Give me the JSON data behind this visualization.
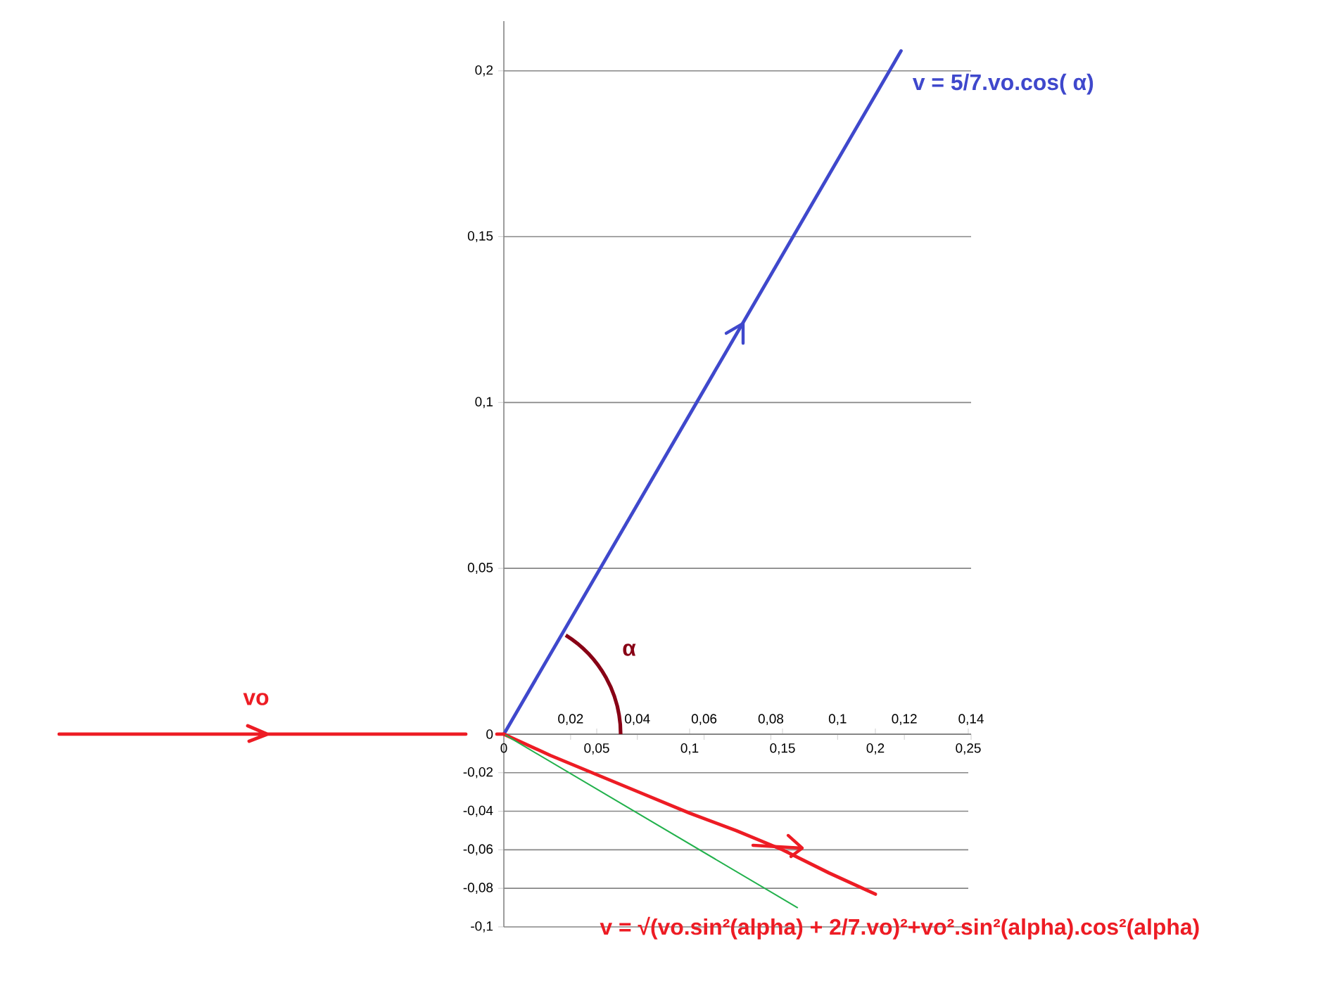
{
  "chart_data": [
    {
      "type": "line",
      "xlim": [
        0,
        0.14
      ],
      "ylim": [
        0,
        0.215
      ],
      "grid": "y",
      "tick_labels": "xy",
      "xticks": [
        {
          "value": 0.02,
          "label": "0,02"
        },
        {
          "value": 0.04,
          "label": "0,04"
        },
        {
          "value": 0.06,
          "label": "0,06"
        },
        {
          "value": 0.08,
          "label": "0,08"
        },
        {
          "value": 0.1,
          "label": "0,1"
        },
        {
          "value": 0.12,
          "label": "0,12"
        },
        {
          "value": 0.14,
          "label": "0,14"
        }
      ],
      "yticks": [
        {
          "value": 0,
          "label": null
        },
        {
          "value": 0.05,
          "label": "0,05"
        },
        {
          "value": 0.1,
          "label": "0,1"
        },
        {
          "value": 0.15,
          "label": "0,15"
        },
        {
          "value": 0.2,
          "label": "0,2"
        }
      ],
      "series": [
        {
          "name": "v = 5/7.vo.cos( α)",
          "color": "#3f48cc",
          "x": [
            0,
            0.119
          ],
          "values": [
            0,
            0.206
          ]
        }
      ],
      "annotations": [
        "vo",
        "α"
      ]
    },
    {
      "type": "line",
      "xlim": [
        0,
        0.25
      ],
      "ylim": [
        -0.1,
        0
      ],
      "grid": "y",
      "xticks": [
        0,
        {
          "value": 0.05,
          "label": "0,05"
        },
        {
          "value": 0.1,
          "label": "0,1"
        },
        {
          "value": 0.15,
          "label": "0,15"
        },
        {
          "value": 0.2,
          "label": "0,2"
        },
        {
          "value": 0.25,
          "label": "0,25"
        }
      ],
      "yticks": [
        {
          "value": -0.1,
          "label": "-0,1"
        },
        {
          "value": -0.08,
          "label": "-0,08"
        },
        {
          "value": -0.06,
          "label": "-0,06"
        },
        {
          "value": -0.04,
          "label": "-0,04"
        },
        {
          "value": -0.02,
          "label": "-0,02"
        },
        0
      ],
      "series": [
        {
          "name": "v = √(vo.sin²(alpha) + 2/7.vo)²+vo².sin²(alpha).cos²(alpha)",
          "color": "#ed1c24",
          "x": [
            0,
            0.025,
            0.05,
            0.075,
            0.1,
            0.125,
            0.15,
            0.175,
            0.2
          ],
          "values": [
            0,
            -0.011,
            -0.021,
            -0.031,
            -0.041,
            -0.05,
            -0.06,
            -0.072,
            -0.083
          ]
        },
        {
          "color": "#22b14c",
          "x": [
            0,
            0.158
          ],
          "values": [
            0,
            -0.09
          ]
        }
      ]
    }
  ]
}
